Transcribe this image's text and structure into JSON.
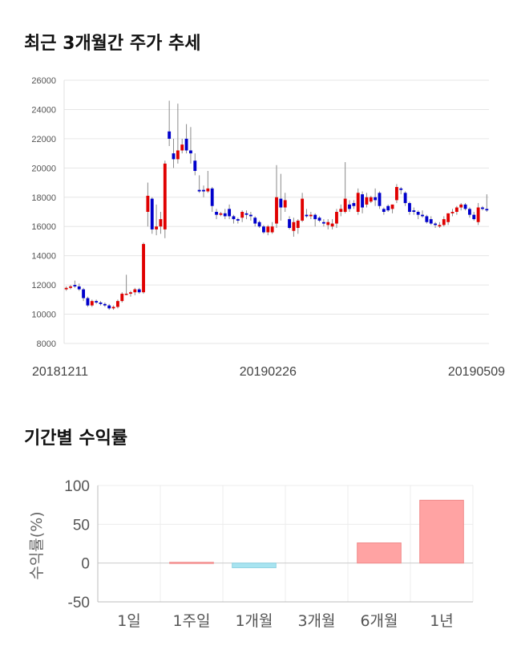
{
  "sections": {
    "price_title": "최근 3개월간 주가 추세",
    "returns_title": "기간별 수익률"
  },
  "colors": {
    "up": "#e00000",
    "down": "#0000cc",
    "bar_positive": "#ffa3a3",
    "bar_negative": "#a8e4f0",
    "grid": "#e6e6e6"
  },
  "chart_data": [
    {
      "type": "candlestick",
      "title": "최근 3개월간 주가 추세",
      "ylim": [
        8000,
        26000
      ],
      "yticks": [
        "26000",
        "24000",
        "22000",
        "20000",
        "18000",
        "16000",
        "14000",
        "12000",
        "10000",
        "8000"
      ],
      "xticks": [
        {
          "index": 0,
          "label": "20181211"
        },
        {
          "index": 47,
          "label": "20190226"
        },
        {
          "index": 94,
          "label": "20190509"
        }
      ],
      "candles": [
        [
          11700,
          11900,
          11600,
          11800
        ],
        [
          11800,
          12000,
          11700,
          11900
        ],
        [
          12000,
          12300,
          11800,
          11900
        ],
        [
          11900,
          12100,
          11600,
          11700
        ],
        [
          11700,
          11800,
          10900,
          11100
        ],
        [
          11100,
          11200,
          10500,
          10600
        ],
        [
          10600,
          11000,
          10500,
          10900
        ],
        [
          10900,
          11000,
          10700,
          10800
        ],
        [
          10800,
          10900,
          10600,
          10700
        ],
        [
          10700,
          10800,
          10500,
          10600
        ],
        [
          10600,
          10700,
          10300,
          10400
        ],
        [
          10400,
          10600,
          10300,
          10500
        ],
        [
          10500,
          11000,
          10400,
          10900
        ],
        [
          10900,
          11500,
          10800,
          11400
        ],
        [
          11400,
          12700,
          11300,
          11400
        ],
        [
          11400,
          11600,
          11200,
          11500
        ],
        [
          11500,
          11800,
          11300,
          11700
        ],
        [
          11700,
          11800,
          11400,
          11500
        ],
        [
          11500,
          14900,
          11400,
          14800
        ],
        [
          17000,
          19000,
          16000,
          18100
        ],
        [
          17900,
          18000,
          15500,
          15800
        ],
        [
          15800,
          17500,
          15400,
          16000
        ],
        [
          16000,
          17000,
          15500,
          16500
        ],
        [
          15800,
          20500,
          15200,
          20300
        ],
        [
          22500,
          24600,
          21500,
          22000
        ],
        [
          21000,
          22000,
          20000,
          20600
        ],
        [
          20600,
          24400,
          20300,
          21200
        ],
        [
          21200,
          22000,
          21000,
          21600
        ],
        [
          22000,
          23000,
          21000,
          21200
        ],
        [
          21200,
          22800,
          20300,
          21000
        ],
        [
          20500,
          21000,
          19500,
          19800
        ],
        [
          18500,
          19500,
          18300,
          18400
        ],
        [
          18500,
          18800,
          18000,
          18400
        ],
        [
          18400,
          19800,
          18300,
          18600
        ],
        [
          18600,
          18700,
          17000,
          17400
        ],
        [
          17000,
          17200,
          16500,
          16800
        ],
        [
          16800,
          17000,
          16700,
          16900
        ],
        [
          16900,
          17200,
          16500,
          16700
        ],
        [
          17200,
          17500,
          16500,
          16700
        ],
        [
          16700,
          16800,
          16200,
          16500
        ],
        [
          16500,
          16600,
          16200,
          16400
        ],
        [
          16600,
          17100,
          16300,
          17000
        ],
        [
          16900,
          17100,
          16500,
          16800
        ],
        [
          16800,
          17000,
          16400,
          16700
        ],
        [
          16600,
          16700,
          16000,
          16200
        ],
        [
          16300,
          16400,
          15900,
          16000
        ],
        [
          16000,
          16100,
          15500,
          15600
        ],
        [
          15600,
          16100,
          15400,
          16000
        ],
        [
          15600,
          16300,
          15500,
          16000
        ],
        [
          16200,
          20200,
          15900,
          18000
        ],
        [
          17900,
          19600,
          16400,
          17300
        ],
        [
          17300,
          18300,
          17000,
          17800
        ],
        [
          16500,
          16700,
          15800,
          15900
        ],
        [
          15700,
          16600,
          15300,
          16300
        ],
        [
          15900,
          16500,
          15500,
          16400
        ],
        [
          16400,
          18300,
          16300,
          17900
        ],
        [
          16800,
          17200,
          16600,
          16700
        ],
        [
          16700,
          17000,
          16500,
          16800
        ],
        [
          16800,
          16900,
          16000,
          16500
        ],
        [
          16600,
          16700,
          16300,
          16400
        ],
        [
          16300,
          16500,
          16000,
          16200
        ],
        [
          16100,
          16500,
          15800,
          16300
        ],
        [
          16000,
          16500,
          15800,
          16200
        ],
        [
          16200,
          17200,
          15900,
          17000
        ],
        [
          17000,
          17500,
          16700,
          17200
        ],
        [
          17000,
          20400,
          16900,
          17900
        ],
        [
          17500,
          17800,
          17000,
          17200
        ],
        [
          17600,
          17800,
          17200,
          17400
        ],
        [
          17000,
          18600,
          16800,
          18300
        ],
        [
          18200,
          18400,
          16900,
          17300
        ],
        [
          17500,
          18300,
          17300,
          18000
        ],
        [
          17700,
          18100,
          17600,
          18000
        ],
        [
          18000,
          18600,
          17400,
          17800
        ],
        [
          18300,
          18400,
          17200,
          17400
        ],
        [
          17200,
          17300,
          16800,
          17000
        ],
        [
          17400,
          17500,
          17000,
          17100
        ],
        [
          17200,
          17500,
          16900,
          17500
        ],
        [
          17800,
          18900,
          17600,
          18700
        ],
        [
          18600,
          18700,
          18200,
          18500
        ],
        [
          18300,
          18400,
          17400,
          17600
        ],
        [
          17600,
          17700,
          16800,
          17000
        ],
        [
          17100,
          17300,
          16800,
          17000
        ],
        [
          17000,
          17100,
          16500,
          16800
        ],
        [
          16800,
          17100,
          16600,
          16700
        ],
        [
          16700,
          16800,
          16200,
          16300
        ],
        [
          16500,
          16700,
          16100,
          16200
        ],
        [
          16200,
          16300,
          15900,
          16100
        ],
        [
          16000,
          16300,
          15900,
          16100
        ],
        [
          16100,
          16700,
          16000,
          16500
        ],
        [
          16300,
          16900,
          16100,
          16900
        ],
        [
          16900,
          17200,
          16700,
          17000
        ],
        [
          17000,
          17400,
          16800,
          17300
        ],
        [
          17300,
          17600,
          17100,
          17500
        ],
        [
          17500,
          17600,
          17100,
          17200
        ],
        [
          17200,
          17300,
          16600,
          16800
        ],
        [
          16800,
          17000,
          16400,
          16500
        ],
        [
          16300,
          17600,
          16100,
          17300
        ],
        [
          17300,
          17400,
          17100,
          17200
        ],
        [
          17200,
          18200,
          17000,
          17100
        ]
      ]
    },
    {
      "type": "bar",
      "title": "기간별 수익률",
      "ylabel": "수익률(%)",
      "ylim": [
        -50,
        100
      ],
      "yticks": [
        "100",
        "50",
        "0",
        "-50"
      ],
      "categories": [
        "1일",
        "1주일",
        "1개월",
        "3개월",
        "6개월",
        "1년"
      ],
      "values": [
        0,
        1,
        -6,
        0,
        26,
        81
      ]
    }
  ]
}
